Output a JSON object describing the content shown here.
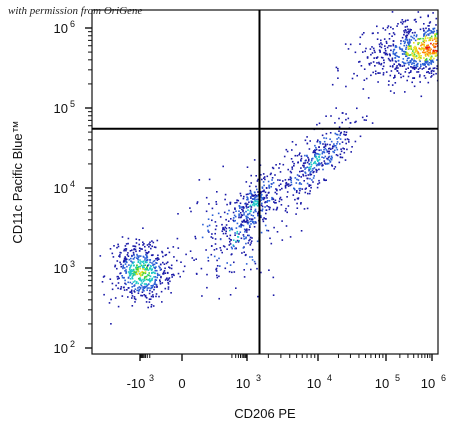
{
  "watermark": "with permission from OriGene",
  "chart_data": {
    "type": "scatter",
    "subtype": "flow-cytometry-density-dot-plot",
    "title": "",
    "xlabel": "CD206 PE",
    "ylabel": "CD11c Pacific Blue™",
    "x_scale": "biexponential",
    "y_scale": "log",
    "x_tick_labels": [
      {
        "base": "-10",
        "exp": "3",
        "value": -1000
      },
      {
        "base": "0",
        "exp": "",
        "value": 0
      },
      {
        "base": "10",
        "exp": "3",
        "value": 1000
      },
      {
        "base": "10",
        "exp": "4",
        "value": 10000
      },
      {
        "base": "10",
        "exp": "5",
        "value": 100000
      },
      {
        "base": "10",
        "exp": "6",
        "value": 1000000
      }
    ],
    "y_tick_labels": [
      {
        "base": "10",
        "exp": "2",
        "value": 100
      },
      {
        "base": "10",
        "exp": "3",
        "value": 1000
      },
      {
        "base": "10",
        "exp": "4",
        "value": 10000
      },
      {
        "base": "10",
        "exp": "5",
        "value": 100000
      },
      {
        "base": "10",
        "exp": "6",
        "value": 1000000
      }
    ],
    "quadrant_gate": {
      "x": 1500,
      "y": 55000
    },
    "populations": [
      {
        "x_center": 1200000,
        "y_center": 600000,
        "x_spread": 0.38,
        "y_spread": 0.2,
        "weight": 0.46
      },
      {
        "x_center": 9000,
        "y_center": 22000,
        "x_spread": 0.28,
        "y_spread": 0.28,
        "weight": 0.14
      },
      {
        "x_center": 1200,
        "y_center": 6000,
        "x_spread": 0.25,
        "y_spread": 0.28,
        "weight": 0.14
      },
      {
        "x_center": -900,
        "y_center": 900,
        "x_spread": 0.22,
        "y_spread": 0.18,
        "weight": 0.2
      },
      {
        "x_center": 200,
        "y_center": 2500,
        "x_spread": 0.4,
        "y_spread": 0.3,
        "weight": 0.06
      }
    ],
    "density_colors": [
      "#1a1aa8",
      "#2a5fd6",
      "#1ec8c8",
      "#3cd23c",
      "#e8e020",
      "#ff8a00",
      "#e81010"
    ],
    "grid": false,
    "legend": "none"
  }
}
